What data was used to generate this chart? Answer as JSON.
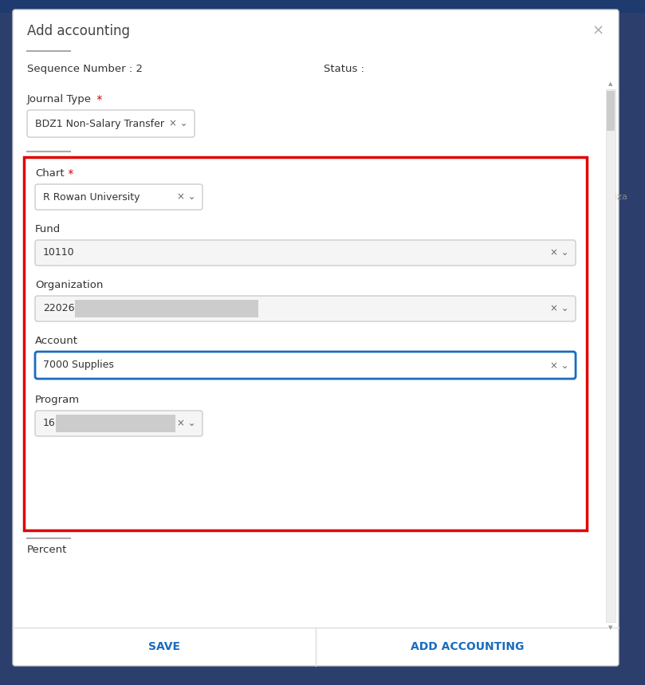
{
  "title": "Add accounting",
  "close_symbol": "×",
  "seq_label": "Sequence Number : 2",
  "status_label": "Status :",
  "journal_type_label": "Journal Type",
  "journal_type_value": "BDZ1 Non-Salary Transfer",
  "chart_label": "Chart",
  "chart_value": "R Rowan University",
  "fund_label": "Fund",
  "fund_value": "10110",
  "org_label": "Organization",
  "org_value": "22026",
  "account_label": "Account",
  "account_value": "7000 Supplies",
  "program_label": "Program",
  "program_value": "16",
  "percent_label": "Percent",
  "save_btn": "SAVE",
  "add_btn": "ADD ACCOUNTING",
  "modal_bg": "#ffffff",
  "overlay_bg": "#2c3e6b",
  "header_bar_color": "#1e3a6e",
  "title_color": "#444444",
  "label_color": "#333333",
  "required_star_color": "#cc0000",
  "input_bg": "#f5f5f5",
  "input_bg_active": "#ffffff",
  "input_border": "#cccccc",
  "input_border_active": "#1a6cbf",
  "input_text_color": "#333333",
  "btn_text_color": "#1a6cbf",
  "divider_color": "#aaaaaa",
  "red_border_color": "#e00000",
  "icon_color": "#666666",
  "scrollbar_track": "#eeeeee",
  "scrollbar_thumb": "#cccccc",
  "foapal_right_label": "iza",
  "close_color": "#aaaaaa",
  "bottom_border": "#dddddd"
}
